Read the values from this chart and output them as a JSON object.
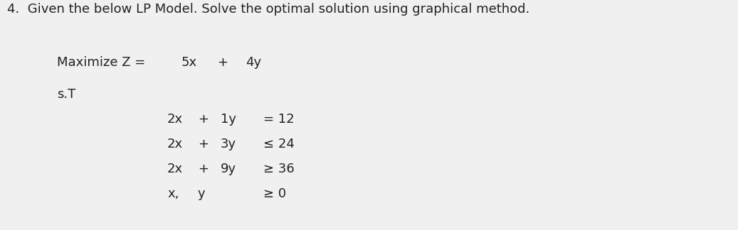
{
  "header_number": "4.",
  "header_text": "  Given the below LP Model. Solve the optimal solution using graphical method.",
  "objective_label": "Maximize Z =",
  "objective_parts": [
    "5x",
    "+",
    "4y"
  ],
  "st_label": "s.T",
  "constraints": [
    {
      "col0": "2x",
      "col1": "+",
      "col2": "1y",
      "col3": "= 12"
    },
    {
      "col0": "2x",
      "col1": "+",
      "col2": "3y",
      "col3": "≤ 24"
    },
    {
      "col0": "2x",
      "col1": "+",
      "col2": "9y",
      "col3": "≥ 36"
    },
    {
      "col0": "x,",
      "col1": "y",
      "col2": "",
      "col3": "≥ 0"
    }
  ],
  "bg_color": "#f0f0f0",
  "text_color": "#222222",
  "font_size": 12.5,
  "font_family": "DejaVu Sans"
}
